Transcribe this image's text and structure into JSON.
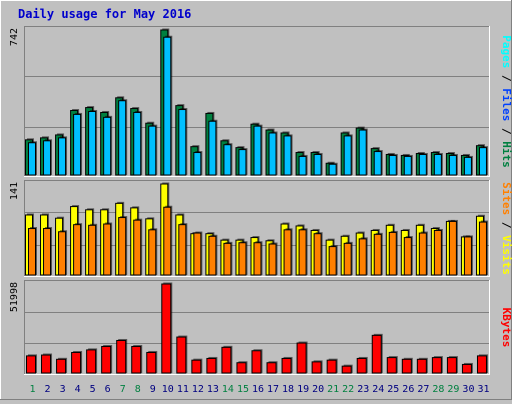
{
  "title": "Daily usage for May 2016",
  "colors": {
    "background": "#c0c0c0",
    "title": "#0000cc",
    "hits": "#008040",
    "files": "#00c0ff",
    "pages": "#00ffff",
    "visits": "#ffff00",
    "sites": "#ff8000",
    "kbytes": "#ff0000",
    "weekend_day_label": "#008040",
    "weekday_label": "#000080"
  },
  "chart_data": [
    {
      "type": "bar",
      "name": "hits-files-pages",
      "categories": [
        "1",
        "2",
        "3",
        "4",
        "5",
        "6",
        "7",
        "8",
        "9",
        "10",
        "11",
        "12",
        "13",
        "14",
        "15",
        "16",
        "17",
        "18",
        "19",
        "20",
        "21",
        "22",
        "23",
        "24",
        "25",
        "26",
        "27",
        "28",
        "29",
        "30",
        "31"
      ],
      "ymax_label": "742",
      "ylim": [
        0,
        742
      ],
      "legend": [
        "Pages",
        "Files",
        "Hits"
      ],
      "series": [
        {
          "name": "Hits",
          "values": [
            180,
            190,
            205,
            330,
            345,
            320,
            395,
            340,
            265,
            742,
            355,
            145,
            315,
            175,
            140,
            260,
            230,
            215,
            115,
            115,
            60,
            215,
            240,
            135,
            105,
            100,
            110,
            115,
            110,
            100,
            150
          ]
        },
        {
          "name": "Files",
          "values": [
            165,
            175,
            190,
            310,
            325,
            295,
            380,
            320,
            250,
            705,
            335,
            115,
            275,
            155,
            130,
            250,
            215,
            200,
            95,
            105,
            55,
            200,
            230,
            120,
            100,
            95,
            105,
            105,
            100,
            90,
            140
          ]
        }
      ]
    },
    {
      "type": "bar",
      "name": "visits-sites",
      "categories": [
        "1",
        "2",
        "3",
        "4",
        "5",
        "6",
        "7",
        "8",
        "9",
        "10",
        "11",
        "12",
        "13",
        "14",
        "15",
        "16",
        "17",
        "18",
        "19",
        "20",
        "21",
        "22",
        "23",
        "24",
        "25",
        "26",
        "27",
        "28",
        "29",
        "30",
        "31"
      ],
      "ymax_label": "141",
      "ylim": [
        0,
        141
      ],
      "legend": [
        "Sites",
        "Visits"
      ],
      "series": [
        {
          "name": "Visits",
          "values": [
            93,
            93,
            88,
            106,
            101,
            101,
            111,
            104,
            87,
            141,
            93,
            64,
            64,
            54,
            54,
            58,
            53,
            79,
            76,
            69,
            54,
            60,
            65,
            69,
            77,
            69,
            77,
            72,
            83,
            59,
            91
          ]
        },
        {
          "name": "Sites",
          "values": [
            72,
            72,
            67,
            78,
            77,
            79,
            89,
            85,
            70,
            105,
            78,
            65,
            60,
            49,
            50,
            50,
            48,
            70,
            70,
            64,
            44,
            49,
            56,
            63,
            66,
            58,
            65,
            69,
            83,
            59,
            82
          ]
        }
      ]
    },
    {
      "type": "bar",
      "name": "kbytes",
      "categories": [
        "1",
        "2",
        "3",
        "4",
        "5",
        "6",
        "7",
        "8",
        "9",
        "10",
        "11",
        "12",
        "13",
        "14",
        "15",
        "16",
        "17",
        "18",
        "19",
        "20",
        "21",
        "22",
        "23",
        "24",
        "25",
        "26",
        "27",
        "28",
        "29",
        "30",
        "31"
      ],
      "ymax_label": "51998",
      "ylim": [
        0,
        51998
      ],
      "legend": [
        "KBytes"
      ],
      "series": [
        {
          "name": "KBytes",
          "values": [
            10000,
            10500,
            8000,
            12000,
            13500,
            15500,
            19000,
            15500,
            12000,
            51998,
            21000,
            7500,
            8500,
            15000,
            6000,
            13000,
            6000,
            8500,
            17500,
            6500,
            7500,
            4000,
            8500,
            22000,
            9000,
            8000,
            8000,
            9000,
            9000,
            5000,
            10000
          ]
        }
      ]
    }
  ]
}
